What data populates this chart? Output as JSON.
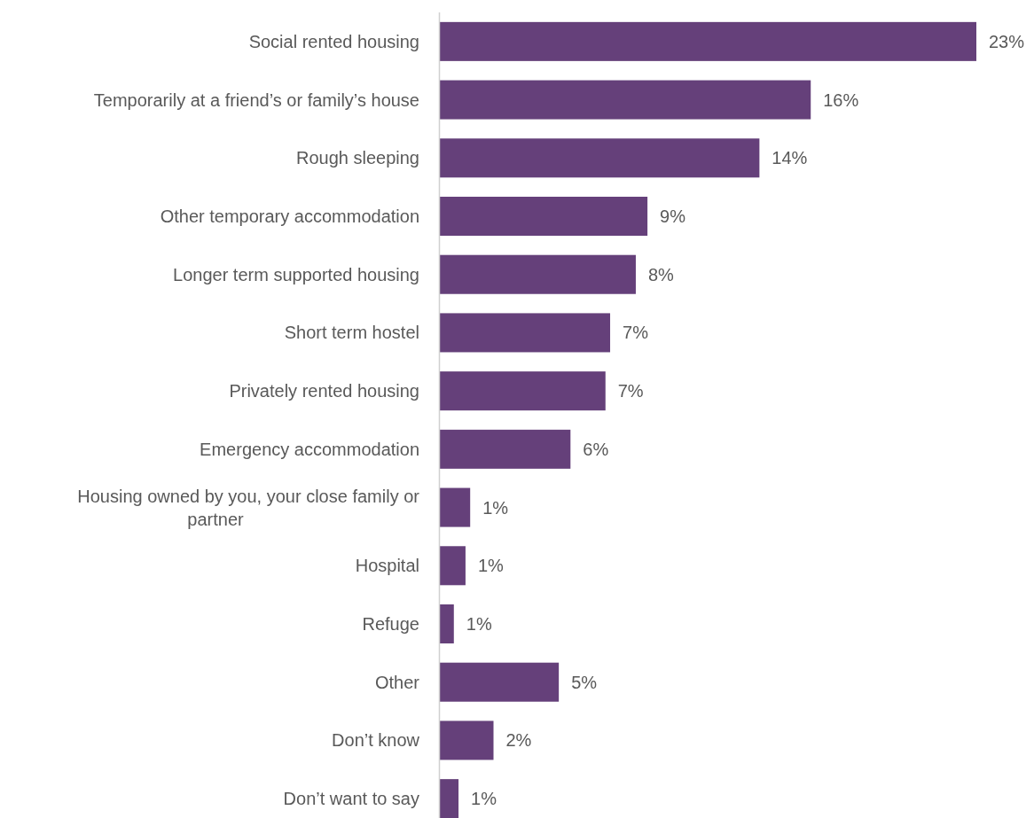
{
  "chart_data": {
    "type": "bar",
    "orientation": "horizontal",
    "categories": [
      "Social rented housing",
      "Temporarily at a friend’s or family’s house",
      "Rough sleeping",
      "Other temporary accommodation",
      "Longer term supported housing",
      "Short term hostel",
      "Privately rented housing",
      "Emergency accommodation",
      "Housing owned by you, your close family or partner",
      "Hospital",
      "Refuge",
      "Other",
      "Don’t know",
      "Don’t want to say"
    ],
    "values": [
      23,
      15.9,
      13.7,
      8.9,
      8.4,
      7.3,
      7.1,
      5.6,
      1.3,
      1.1,
      0.6,
      5.1,
      2.3,
      0.8
    ],
    "value_labels": [
      "23%",
      "16%",
      "14%",
      "9%",
      "8%",
      "7%",
      "7%",
      "6%",
      "1%",
      "1%",
      "1%",
      "5%",
      "2%",
      "1%"
    ],
    "color": "#65407a"
  }
}
